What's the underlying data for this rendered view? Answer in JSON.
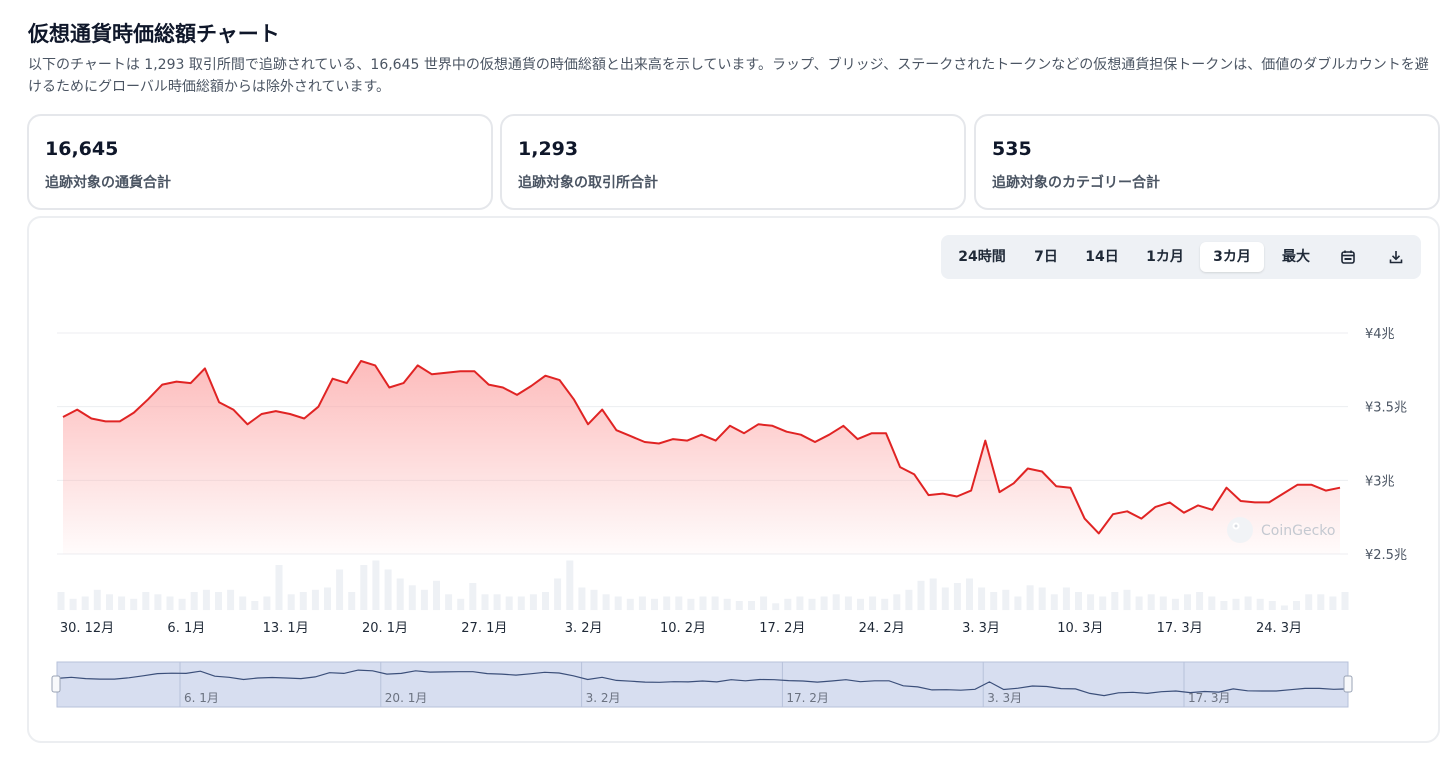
{
  "page": {
    "title": "仮想通貨時価総額チャート",
    "description": "以下のチャートは 1,293 取引所間で追跡されている、16,645 世界中の仮想通貨の時価総額と出来高を示しています。ラップ、ブリッジ、ステークされたトークンなどの仮想通貨担保トークンは、価値のダブルカウントを避けるためにグローバル時価総額からは除外されています。"
  },
  "stats": [
    {
      "value": "16,645",
      "label": "追跡対象の通貨合計"
    },
    {
      "value": "1,293",
      "label": "追跡対象の取引所合計"
    },
    {
      "value": "535",
      "label": "追跡対象のカテゴリー合計"
    }
  ],
  "range_tabs": [
    {
      "label": "24時間",
      "active": false
    },
    {
      "label": "7日",
      "active": false
    },
    {
      "label": "14日",
      "active": false
    },
    {
      "label": "1カ月",
      "active": false
    },
    {
      "label": "3カ月",
      "active": true
    },
    {
      "label": "最大",
      "active": false
    }
  ],
  "icons": {
    "calendar": "calendar-icon",
    "download": "download-icon",
    "watermark": "coingecko-logo"
  },
  "watermark_text": "CoinGecko",
  "colors": {
    "line": "#e02424",
    "area_top": "#fca5a5",
    "volume": "#eef1f5",
    "navigator_fill": "#d7def0",
    "navigator_line": "#3b4f7a"
  },
  "chart_data": {
    "type": "area",
    "title": "",
    "xlabel": "",
    "ylabel": "",
    "x_tick_labels": [
      "30. 12月",
      "6. 1月",
      "13. 1月",
      "20. 1月",
      "27. 1月",
      "3. 2月",
      "10. 2月",
      "17. 2月",
      "24. 2月",
      "3. 3月",
      "10. 3月",
      "17. 3月",
      "24. 3月"
    ],
    "y_tick_labels": [
      "¥4兆",
      "¥3.5兆",
      "¥3兆",
      "¥2.5兆"
    ],
    "y_ticks": [
      4.0,
      3.5,
      3.0,
      2.5
    ],
    "ylim": [
      2.5,
      4.0
    ],
    "y_unit": "兆円",
    "grid": true,
    "series": [
      {
        "values": [
          3.43,
          3.48,
          3.42,
          3.4,
          3.4,
          3.46,
          3.55,
          3.65,
          3.67,
          3.66,
          3.76,
          3.53,
          3.48,
          3.38,
          3.45,
          3.47,
          3.45,
          3.42,
          3.5,
          3.69,
          3.66,
          3.81,
          3.78,
          3.63,
          3.66,
          3.78,
          3.72,
          3.73,
          3.74,
          3.74,
          3.65,
          3.63,
          3.58,
          3.64,
          3.71,
          3.68,
          3.55,
          3.38,
          3.48,
          3.34,
          3.3,
          3.26,
          3.25,
          3.28,
          3.27,
          3.31,
          3.27,
          3.37,
          3.32,
          3.38,
          3.37,
          3.33,
          3.31,
          3.26,
          3.31,
          3.37,
          3.28,
          3.32,
          3.32,
          3.09,
          3.04,
          2.9,
          2.91,
          2.89,
          2.93,
          3.27,
          2.92,
          2.98,
          3.08,
          3.06,
          2.96,
          2.95,
          2.74,
          2.64,
          2.77,
          2.79,
          2.74,
          2.82,
          2.85,
          2.78,
          2.83,
          2.8,
          2.95,
          2.86,
          2.85,
          2.85,
          2.91,
          2.97,
          2.97,
          2.93,
          2.95
        ]
      }
    ],
    "volume": {
      "values": [
        0.4,
        0.25,
        0.3,
        0.45,
        0.35,
        0.3,
        0.25,
        0.4,
        0.35,
        0.3,
        0.25,
        0.4,
        0.45,
        0.4,
        0.45,
        0.3,
        0.2,
        0.3,
        1.0,
        0.35,
        0.4,
        0.45,
        0.5,
        0.9,
        0.4,
        1.0,
        1.1,
        0.9,
        0.7,
        0.55,
        0.45,
        0.65,
        0.35,
        0.25,
        0.6,
        0.35,
        0.35,
        0.3,
        0.3,
        0.35,
        0.4,
        0.7,
        1.1,
        0.5,
        0.45,
        0.35,
        0.3,
        0.25,
        0.3,
        0.25,
        0.3,
        0.3,
        0.25,
        0.3,
        0.3,
        0.25,
        0.2,
        0.2,
        0.3,
        0.15,
        0.25,
        0.3,
        0.25,
        0.3,
        0.35,
        0.3,
        0.25,
        0.3,
        0.25,
        0.35,
        0.45,
        0.65,
        0.7,
        0.5,
        0.6,
        0.7,
        0.5,
        0.4,
        0.45,
        0.3,
        0.55,
        0.5,
        0.35,
        0.5,
        0.4,
        0.35,
        0.3,
        0.4,
        0.45,
        0.3,
        0.35,
        0.3,
        0.25,
        0.35,
        0.4,
        0.3,
        0.2,
        0.25,
        0.3,
        0.25,
        0.2,
        0.1,
        0.2,
        0.35,
        0.35,
        0.3,
        0.4
      ]
    },
    "navigator": {
      "x_tick_labels": [
        "6. 1月",
        "20. 1月",
        "3. 2月",
        "17. 2月",
        "3. 3月",
        "17. 3月"
      ]
    }
  }
}
